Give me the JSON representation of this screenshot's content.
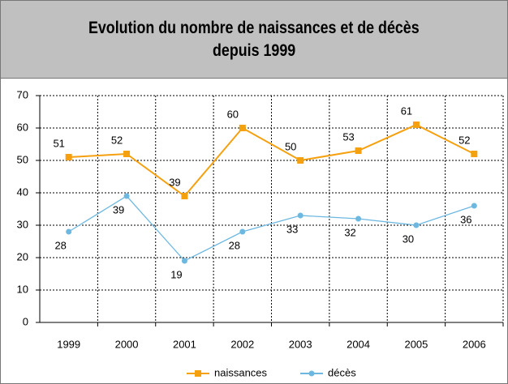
{
  "chart_data": {
    "type": "line",
    "title": [
      "Evolution du nombre de naissances et de décès",
      "depuis 1999"
    ],
    "categories": [
      "1999",
      "2000",
      "2001",
      "2002",
      "2003",
      "2004",
      "2005",
      "2006"
    ],
    "series": [
      {
        "name": "naissances",
        "color": "#f5a00f",
        "marker": "square",
        "values": [
          51,
          52,
          39,
          60,
          50,
          53,
          61,
          52
        ]
      },
      {
        "name": "décès",
        "color": "#6db8e0",
        "marker": "circle",
        "values": [
          28,
          39,
          19,
          28,
          33,
          32,
          30,
          36
        ]
      }
    ],
    "ylim": [
      0,
      70
    ],
    "yticks": [
      0,
      10,
      20,
      30,
      40,
      50,
      60,
      70
    ],
    "grid": true,
    "legend": "bottom"
  }
}
